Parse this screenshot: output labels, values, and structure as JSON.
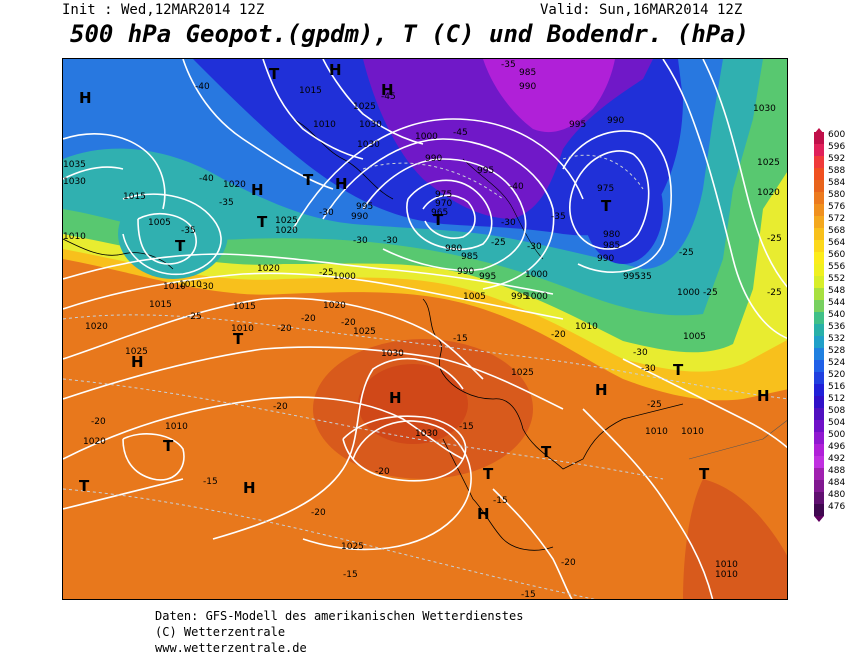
{
  "header": {
    "init": "Init : Wed,12MAR2014 12Z",
    "valid": "Valid: Sun,16MAR2014 12Z",
    "title": "500 hPa Geopot.(gpdm), T (C) und Bodendr. (hPa)"
  },
  "footer": {
    "line1": "Daten: GFS-Modell des amerikanischen Wetterdienstes",
    "line2": "(C) Wetterzentrale",
    "line3": "www.wetterzentrale.de"
  },
  "legend": {
    "levels": [
      "600",
      "596",
      "592",
      "588",
      "584",
      "580",
      "576",
      "572",
      "568",
      "564",
      "560",
      "556",
      "552",
      "548",
      "544",
      "540",
      "536",
      "532",
      "528",
      "524",
      "520",
      "516",
      "512",
      "508",
      "504",
      "500",
      "496",
      "492",
      "488",
      "484",
      "480",
      "476"
    ],
    "colors": [
      "#c0104a",
      "#e0205a",
      "#f03a3a",
      "#f05020",
      "#e8641c",
      "#ec7a1e",
      "#f0901e",
      "#f4a81e",
      "#f8c01c",
      "#fcd81c",
      "#fcec1c",
      "#f0f020",
      "#d8ee2a",
      "#a8e040",
      "#78d060",
      "#40c088",
      "#28b0a8",
      "#20a0c8",
      "#2080e0",
      "#2060e8",
      "#2040e0",
      "#2020d8",
      "#3010c8",
      "#5010c0",
      "#7010c8",
      "#9018d0",
      "#b020d8",
      "#c030e0",
      "#a020b0",
      "#801890",
      "#601070",
      "#400850"
    ]
  },
  "map": {
    "isobar_labels": [
      "1030",
      "1020",
      "1015",
      "1010",
      "1005",
      "1000",
      "995",
      "990",
      "985",
      "980",
      "975",
      "970",
      "965",
      "1025",
      "1035"
    ],
    "pressure_centers": [
      {
        "sym": "H"
      },
      {
        "sym": "T"
      },
      {
        "sym": "H"
      },
      {
        "sym": "H"
      },
      {
        "sym": "T"
      },
      {
        "sym": "T"
      },
      {
        "sym": "H"
      },
      {
        "sym": "T"
      },
      {
        "sym": "T"
      },
      {
        "sym": "H"
      },
      {
        "sym": "T"
      },
      {
        "sym": "T"
      },
      {
        "sym": "H"
      },
      {
        "sym": "T"
      },
      {
        "sym": "T"
      },
      {
        "sym": "H"
      },
      {
        "sym": "H"
      },
      {
        "sym": "T"
      },
      {
        "sym": "T"
      },
      {
        "sym": "H"
      },
      {
        "sym": "H"
      },
      {
        "sym": "T"
      },
      {
        "sym": "T"
      },
      {
        "sym": "H"
      }
    ],
    "temperature_labels": [
      "-40",
      "-35",
      "-30",
      "-25",
      "-20",
      "-15",
      "-45"
    ]
  }
}
